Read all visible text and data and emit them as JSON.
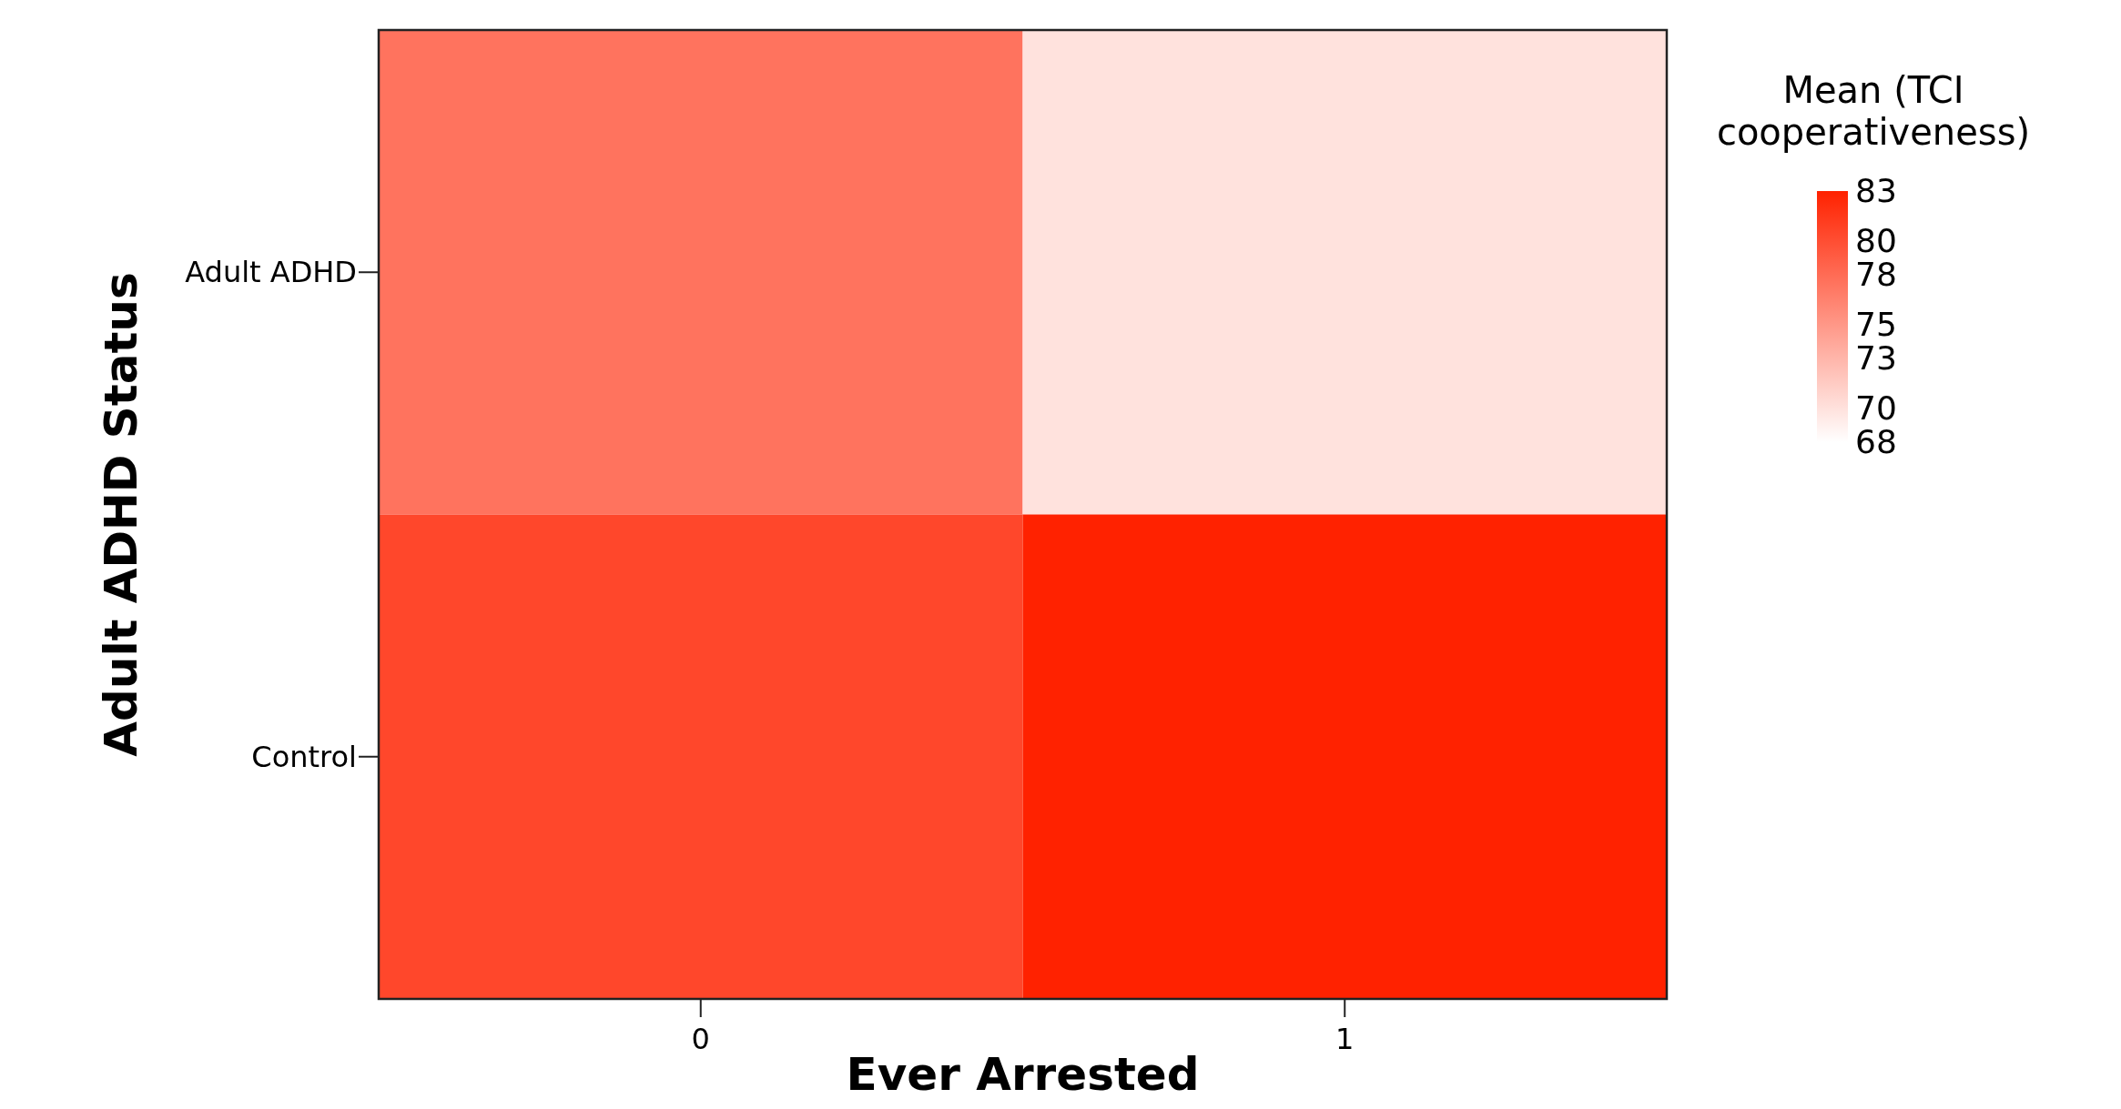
{
  "chart_data": {
    "type": "heatmap",
    "xlabel": "Ever Arrested",
    "ylabel": "Adult ADHD Status",
    "legend_title": "Mean (TCI cooperativeness)",
    "categories": [
      "0",
      "1"
    ],
    "y_categories": [
      "Adult ADHD",
      "Control"
    ],
    "cells": [
      [
        77.5,
        70
      ],
      [
        80.5,
        83
      ]
    ],
    "clim": [
      68,
      83
    ],
    "cticks": [
      83,
      80,
      78,
      75,
      73,
      70,
      68
    ],
    "colors": [
      "#ffffff",
      "#ff2200"
    ]
  }
}
